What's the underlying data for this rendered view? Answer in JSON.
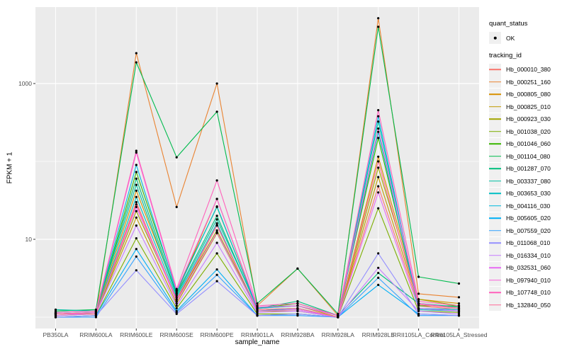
{
  "colors": {
    "panel_background": "#EBEBEB",
    "gridline": "#FFFFFF",
    "tick_label": "#4D4D4D",
    "tick_mark": "#333333",
    "point": "#000000",
    "legend_key_background": "#F0F0F0"
  },
  "legend": {
    "quant_status": {
      "title": "quant_status",
      "items": [
        {
          "label": "OK",
          "marker": "point"
        }
      ]
    },
    "tracking_id_title": "tracking_id"
  },
  "chart_data": {
    "type": "line",
    "title": "",
    "xlabel": "sample_name",
    "ylabel": "FPKM + 1",
    "y_scale": "log10",
    "y_axis": {
      "ticks": [
        {
          "value": 10,
          "label": "10"
        },
        {
          "value": 1000,
          "label": "1000"
        }
      ],
      "gridlines": [
        1,
        10,
        100,
        1000
      ],
      "major_gridlines": [
        10,
        1000
      ],
      "range_approx": [
        1,
        9000
      ]
    },
    "grid": "on",
    "legend_position": "right",
    "point_marker": "filled-black-dot",
    "categories": [
      "PB350LA",
      "RRIM600LA",
      "RRIM600LE",
      "RRIM600SE",
      "RRIM600PE",
      "RRIM901LA",
      "RRIM928BA",
      "RRIM928LA",
      "RRIM928LE",
      "RRII105LA_Control",
      "RRII105LA_Stressed"
    ],
    "series": [
      {
        "name": "Hb_000010_380",
        "color": "#F8766D",
        "values": [
          1.1,
          1.1,
          30,
          1.6,
          15,
          1.2,
          1.3,
          1.0,
          48,
          1.4,
          1.25
        ]
      },
      {
        "name": "Hb_000251_160",
        "color": "#EA8331",
        "values": [
          1.05,
          1.1,
          2455,
          26,
          1000,
          1.4,
          4.2,
          1.05,
          6900,
          2.0,
          1.8
        ]
      },
      {
        "name": "Hb_000805_080",
        "color": "#D89000",
        "values": [
          1.1,
          1.15,
          42,
          2.0,
          33,
          1.3,
          1.4,
          1.0,
          115,
          1.7,
          1.5
        ]
      },
      {
        "name": "Hb_000825_010",
        "color": "#C09B00",
        "values": [
          1.05,
          1.1,
          19,
          1.5,
          12,
          1.2,
          1.2,
          1.0,
          63,
          1.5,
          1.3
        ]
      },
      {
        "name": "Hb_000923_030",
        "color": "#A3A500",
        "values": [
          1.1,
          1.1,
          23,
          1.7,
          13,
          1.25,
          1.3,
          1.0,
          83,
          1.7,
          1.4
        ]
      },
      {
        "name": "Hb_001038_020",
        "color": "#7CAE00",
        "values": [
          1.0,
          1.05,
          10.3,
          1.3,
          6.6,
          1.1,
          1.1,
          1.0,
          25,
          1.2,
          1.15
        ]
      },
      {
        "name": "Hb_001046_060",
        "color": "#39B600",
        "values": [
          1.1,
          1.15,
          73,
          2.2,
          26,
          1.3,
          1.5,
          1.05,
          200,
          1.4,
          1.4
        ]
      },
      {
        "name": "Hb_001104_080",
        "color": "#00BB4E",
        "values": [
          1.2,
          1.25,
          1870,
          113,
          435,
          1.5,
          4.2,
          1.1,
          5350,
          3.3,
          2.7
        ]
      },
      {
        "name": "Hb_001287_070",
        "color": "#00BF7D",
        "values": [
          1.15,
          1.2,
          60,
          2.0,
          20,
          1.3,
          1.6,
          1.05,
          3.7,
          1.5,
          1.35
        ]
      },
      {
        "name": "Hb_003337_080",
        "color": "#00C1A3",
        "values": [
          1.25,
          1.2,
          50,
          1.9,
          18,
          1.35,
          1.4,
          1.05,
          325,
          1.3,
          1.2
        ]
      },
      {
        "name": "Hb_003653_030",
        "color": "#00BFC4",
        "values": [
          1.1,
          1.1,
          35,
          1.8,
          16,
          1.2,
          1.3,
          1.0,
          240,
          1.25,
          1.2
        ]
      },
      {
        "name": "Hb_004116_030",
        "color": "#00BAE0",
        "values": [
          1.15,
          1.2,
          90,
          2.1,
          26.4,
          1.3,
          1.4,
          1.05,
          380,
          1.3,
          1.25
        ]
      },
      {
        "name": "Hb_005605_020",
        "color": "#00B0F6",
        "values": [
          1.0,
          1.05,
          7.5,
          1.2,
          4.1,
          1.05,
          1.1,
          1.0,
          2.6,
          1.1,
          1.05
        ]
      },
      {
        "name": "Hb_007559_020",
        "color": "#35A2FF",
        "values": [
          1.0,
          1.0,
          6.0,
          1.15,
          3.5,
          1.05,
          1.05,
          1.0,
          3.2,
          1.05,
          1.05
        ]
      },
      {
        "name": "Hb_011068_010",
        "color": "#9590FF",
        "values": [
          1.0,
          1.05,
          4.0,
          1.1,
          2.9,
          1.05,
          1.1,
          1.0,
          6.6,
          1.1,
          1.05
        ]
      },
      {
        "name": "Hb_016334_010",
        "color": "#C77CFF",
        "values": [
          1.05,
          1.1,
          15,
          1.4,
          9.0,
          1.15,
          1.2,
          1.0,
          4.3,
          1.2,
          1.1
        ]
      },
      {
        "name": "Hb_032531_060",
        "color": "#E76BF3",
        "values": [
          1.1,
          1.1,
          26,
          1.6,
          12.3,
          1.2,
          1.25,
          1.0,
          40,
          1.3,
          1.2
        ]
      },
      {
        "name": "Hb_097940_010",
        "color": "#FA62DB",
        "values": [
          1.1,
          1.15,
          130,
          2.2,
          33,
          1.35,
          1.4,
          1.05,
          264,
          1.5,
          1.3
        ]
      },
      {
        "name": "Hb_107748_010",
        "color": "#FF62BC",
        "values": [
          1.15,
          1.2,
          137,
          2.3,
          57,
          1.4,
          1.5,
          1.05,
          455,
          1.6,
          1.4
        ]
      },
      {
        "name": "Hb_132840_050",
        "color": "#FF6A98",
        "values": [
          1.1,
          1.1,
          28,
          1.7,
          15.2,
          1.25,
          1.3,
          1.0,
          100,
          1.45,
          1.3
        ]
      }
    ]
  }
}
